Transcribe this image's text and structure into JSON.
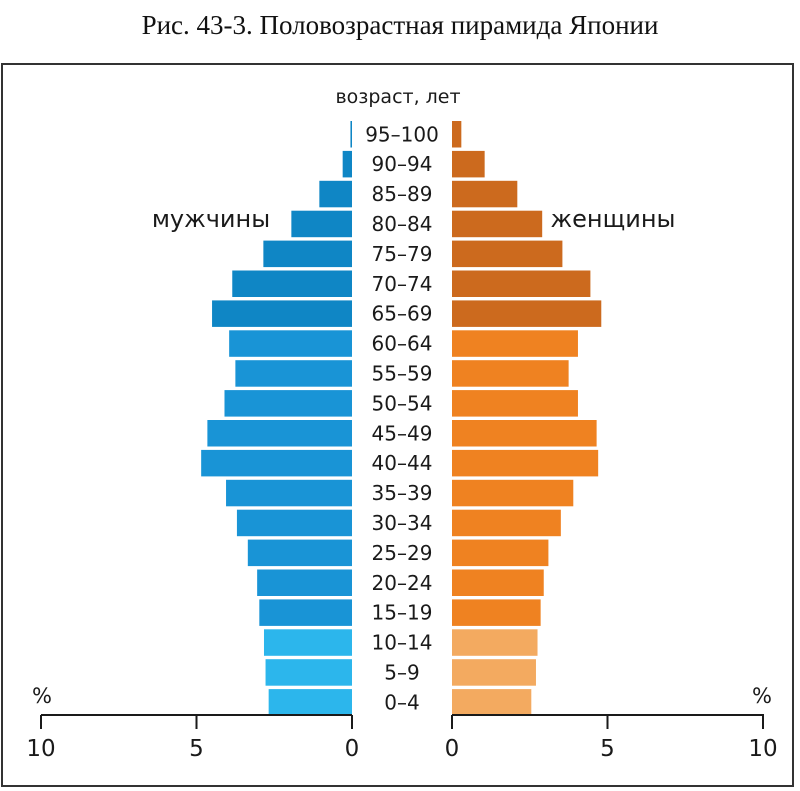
{
  "title": "Рис. 43-3. Половозрастная пирамида Японии",
  "chart_data": {
    "type": "bar",
    "orientation": "horizontal-population-pyramid",
    "age_axis_label": "возраст, лет",
    "categories": [
      "95–100",
      "90–94",
      "85–89",
      "80–84",
      "75–79",
      "70–74",
      "65–69",
      "60–64",
      "55–59",
      "50–54",
      "45–49",
      "40–44",
      "35–39",
      "30–34",
      "25–29",
      "20–24",
      "15–19",
      "10–14",
      "5–9",
      "0–4"
    ],
    "series": [
      {
        "name": "мужчины",
        "side": "left",
        "values": [
          0.05,
          0.3,
          1.05,
          1.95,
          2.85,
          3.85,
          4.5,
          3.95,
          3.75,
          4.1,
          4.65,
          4.85,
          4.05,
          3.7,
          3.35,
          3.05,
          2.98,
          2.83,
          2.78,
          2.68
        ],
        "colors": {
          "ages_0_14": "#2cb6ec",
          "ages_15_64": "#1994d6",
          "ages_65_plus": "#0f86c5"
        }
      },
      {
        "name": "женщины",
        "side": "right",
        "values": [
          0.3,
          1.05,
          2.1,
          2.9,
          3.55,
          4.45,
          4.8,
          4.05,
          3.75,
          4.05,
          4.65,
          4.7,
          3.9,
          3.5,
          3.1,
          2.95,
          2.85,
          2.75,
          2.7,
          2.55
        ],
        "colors": {
          "ages_0_14": "#f3aa60",
          "ages_15_64": "#ef8221",
          "ages_65_plus": "#cc6a1e"
        }
      }
    ],
    "x_axis": {
      "unit_label": "%",
      "left_ticks": [
        "10",
        "5",
        "0"
      ],
      "right_ticks": [
        "0",
        "5",
        "10"
      ],
      "range": [
        0,
        10
      ]
    },
    "grid": false
  }
}
